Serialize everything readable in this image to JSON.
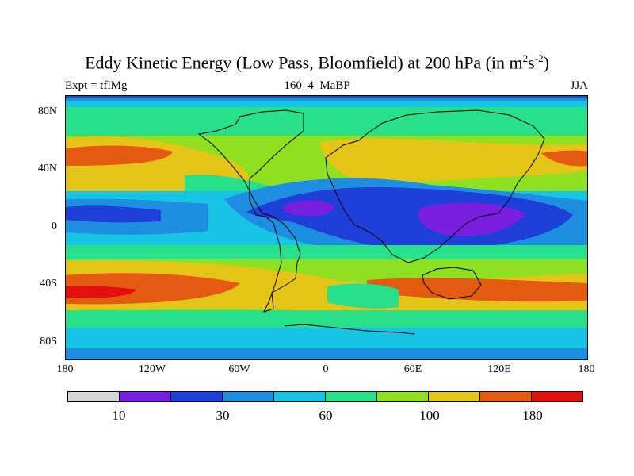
{
  "title": {
    "main": "Eddy Kinetic Energy (Low Pass, Bloomfield) at 200 hPa (in m",
    "sup1": "2",
    "mid": "s",
    "sup2": "-2",
    "end": ")"
  },
  "subtitle": {
    "left": "Expt = tflMg",
    "center": "160_4_MaBP",
    "right": "JJA"
  },
  "axes": {
    "lat_labels": [
      "80N",
      "40N",
      "0",
      "40S",
      "80S"
    ],
    "lon_labels": [
      "180",
      "120W",
      "60W",
      "0",
      "60E",
      "120E",
      "180"
    ]
  },
  "colorbar": {
    "colors": [
      "#d6d6d6",
      "#7a1fe0",
      "#1e3fd8",
      "#1e8ee0",
      "#18c4e4",
      "#28e08a",
      "#8ee020",
      "#e4c416",
      "#e45a10",
      "#e41010"
    ],
    "labels": [
      "10",
      "30",
      "60",
      "100",
      "180"
    ]
  },
  "map_colors": {
    "level1": "#7a1fe0",
    "level2": "#1e3fd8",
    "level3": "#1e8ee0",
    "level4": "#18c4e4",
    "level5": "#28e08a",
    "level6": "#8ee020",
    "level7": "#e4c416",
    "level8": "#e45a10",
    "level9": "#e41010"
  }
}
